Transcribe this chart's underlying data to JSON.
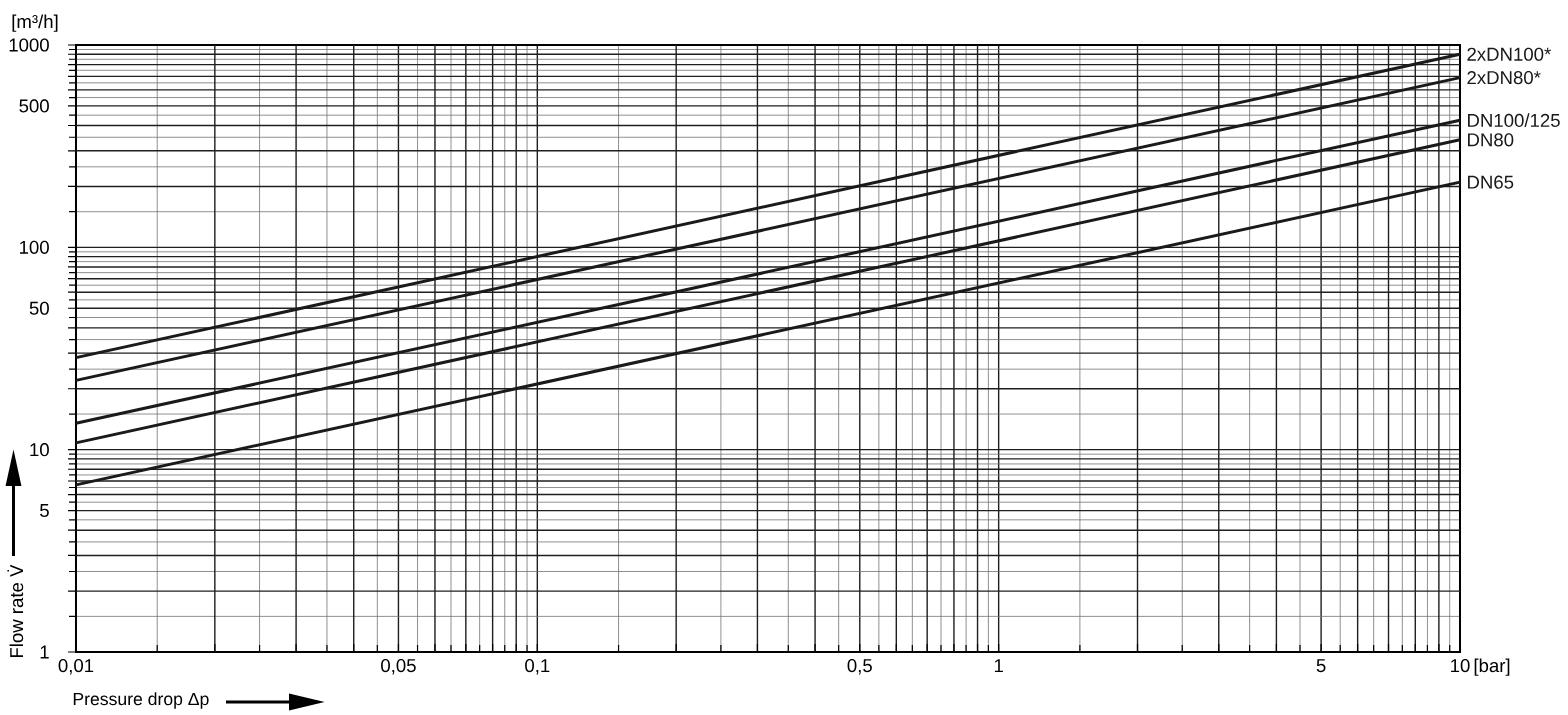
{
  "chart_data": {
    "type": "line",
    "xlabel": "Pressure drop Δp",
    "ylabel": "Flow rate V̇",
    "annotations": [
      "[m³/h]",
      "[bar]"
    ],
    "log": "xy",
    "grid": true,
    "marker": "none",
    "line_style": "solid",
    "xlim": [
      0.01,
      10
    ],
    "ylim": [
      1,
      1000
    ],
    "xticks": [
      {
        "value": 0.01,
        "label": "0,01"
      },
      {
        "value": 0.05,
        "label": "0,05"
      },
      {
        "value": 0.1,
        "label": "0,1"
      },
      {
        "value": 0.5,
        "label": "0,5"
      },
      1,
      5,
      10
    ],
    "yticks": [
      1,
      5,
      10,
      50,
      100,
      500,
      1000
    ],
    "x": [
      0.01,
      10
    ],
    "series": [
      {
        "name": "2xDN100*",
        "color": "#1a1a1a",
        "values": [
          28.5,
          900
        ]
      },
      {
        "name": "2xDN80*",
        "color": "#1a1a1a",
        "values": [
          22,
          690
        ]
      },
      {
        "name": "DN100/125",
        "color": "#1a1a1a",
        "values": [
          13.5,
          425
        ]
      },
      {
        "name": "DN80",
        "color": "#1a1a1a",
        "values": [
          10.8,
          340
        ]
      },
      {
        "name": "DN65",
        "color": "#1a1a1a",
        "values": [
          6.7,
          210
        ]
      }
    ]
  }
}
